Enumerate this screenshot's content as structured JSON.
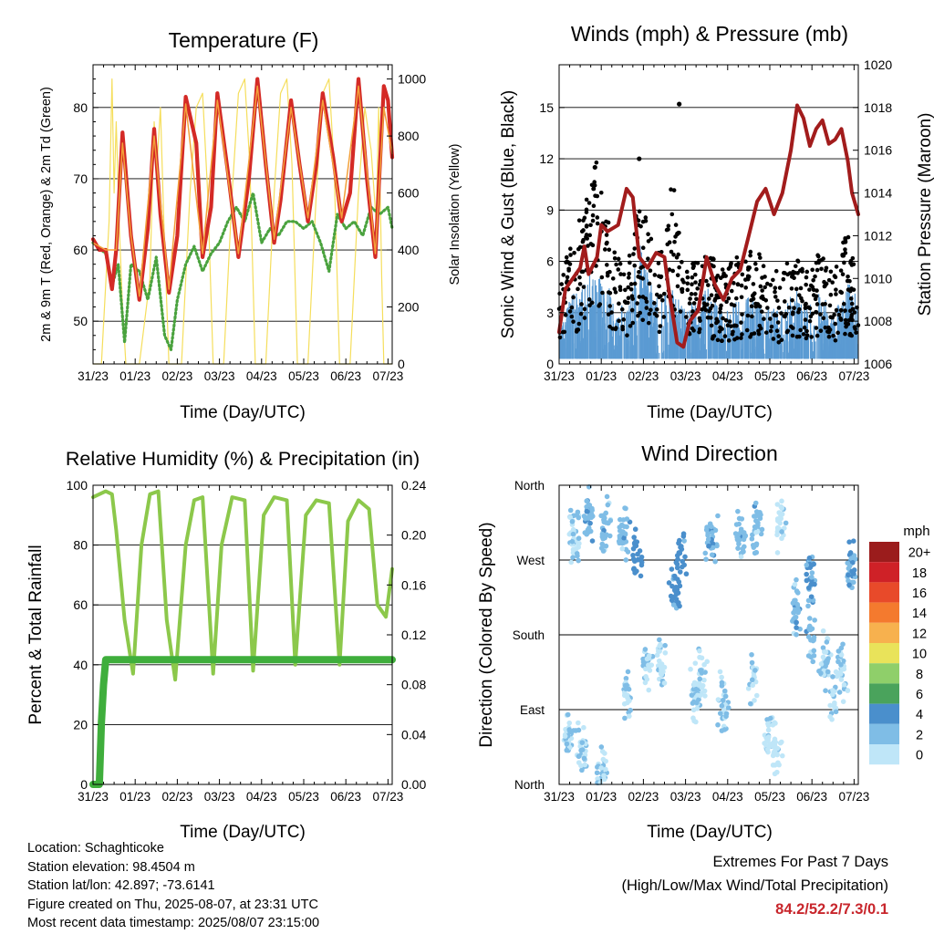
{
  "days": [
    "31/23",
    "01/23",
    "02/23",
    "03/23",
    "04/23",
    "05/23",
    "06/23",
    "07/23"
  ],
  "time_axis_label": "Time (Day/UTC)",
  "colors": {
    "temp_2m": "#d42a26",
    "temp_9m": "#f3a03a",
    "dewpoint": "#4aa23e",
    "solar": "#f5de5c",
    "wind": "#5b9bd3",
    "gust": "#000000",
    "pressure": "#a21c1c",
    "rh": "#8cc84b",
    "precip": "#3fae3c"
  },
  "chart_data": [
    {
      "id": "temperature",
      "type": "line",
      "title": "Temperature (F)",
      "ylabel": "2m & 9m T (Red, Orange) & 2m Td (Green)",
      "y2label": "Solar Insolation (Yellow)",
      "xlabel": "Time (Day/UTC)",
      "ylim": [
        44,
        86
      ],
      "yticks": [
        50,
        60,
        70,
        80
      ],
      "y2lim": [
        0,
        1050
      ],
      "y2ticks": [
        0,
        200,
        400,
        600,
        800,
        1000
      ],
      "series": [
        {
          "role": "temp_2m",
          "x": [
            0,
            0.15,
            0.3,
            0.45,
            0.55,
            0.7,
            0.9,
            1.1,
            1.3,
            1.45,
            1.6,
            1.8,
            2.0,
            2.2,
            2.45,
            2.6,
            2.8,
            2.95,
            3.2,
            3.45,
            3.7,
            3.9,
            4.1,
            4.3,
            4.45,
            4.7,
            4.9,
            5.1,
            5.3,
            5.45,
            5.7,
            5.9,
            6.1,
            6.3,
            6.5,
            6.7,
            6.9,
            7.0,
            7.1
          ],
          "values": [
            61.5,
            60,
            60,
            54.5,
            60,
            76.5,
            62,
            53,
            63,
            77,
            65,
            54,
            62,
            81.5,
            75,
            59,
            66,
            82,
            71,
            59,
            70,
            84,
            72,
            61,
            67,
            81,
            72,
            64,
            72,
            82,
            73,
            64,
            68,
            84,
            70,
            59,
            83,
            81,
            73
          ]
        },
        {
          "role": "temp_9m",
          "x": [
            0,
            0.3,
            0.55,
            0.7,
            0.9,
            1.1,
            1.45,
            1.8,
            2.2,
            2.6,
            2.95,
            3.45,
            3.9,
            4.3,
            4.7,
            5.1,
            5.45,
            5.9,
            6.3,
            6.7,
            6.9,
            7.1
          ],
          "values": [
            61,
            60,
            60,
            75,
            62,
            53.5,
            76,
            54.5,
            80.5,
            59.5,
            81,
            59.5,
            83,
            61.5,
            80,
            64.5,
            81,
            64.5,
            83,
            59.5,
            80,
            73.5
          ]
        },
        {
          "role": "dewpoint",
          "x": [
            0,
            0.3,
            0.45,
            0.6,
            0.75,
            0.9,
            1.1,
            1.3,
            1.5,
            1.7,
            1.85,
            2.0,
            2.2,
            2.4,
            2.6,
            2.8,
            3.0,
            3.2,
            3.4,
            3.6,
            3.8,
            4.0,
            4.2,
            4.4,
            4.6,
            4.8,
            5.0,
            5.2,
            5.4,
            5.6,
            5.8,
            6.0,
            6.2,
            6.4,
            6.6,
            6.8,
            7.0,
            7.1
          ],
          "values": [
            61,
            59.5,
            55,
            58,
            47,
            58,
            57,
            53,
            59,
            48,
            46,
            53,
            58,
            60.5,
            57,
            59.5,
            61,
            64,
            66,
            64,
            68,
            61,
            63,
            62,
            64,
            64,
            63,
            64,
            61,
            57,
            65,
            63,
            64,
            62,
            66,
            65,
            66,
            63
          ]
        },
        {
          "role": "solar",
          "x": [
            0,
            0.2,
            0.38,
            0.45,
            0.5,
            0.55,
            0.62,
            0.7,
            0.78,
            0.88,
            1.1,
            1.35,
            1.45,
            1.52,
            1.6,
            1.68,
            1.8,
            2.1,
            2.3,
            2.45,
            2.6,
            2.72,
            2.85,
            3.1,
            3.3,
            3.45,
            3.6,
            3.72,
            3.85,
            4.1,
            4.3,
            4.45,
            4.6,
            4.72,
            4.85,
            5.1,
            5.3,
            5.45,
            5.6,
            5.72,
            5.85,
            6.1,
            6.3,
            6.45,
            6.6,
            6.72,
            6.78,
            6.85,
            6.9,
            7.1
          ],
          "values": [
            0,
            0,
            500,
            1000,
            600,
            850,
            500,
            200,
            0,
            0,
            0,
            300,
            850,
            700,
            900,
            500,
            0,
            0,
            600,
            900,
            950,
            600,
            0,
            0,
            600,
            950,
            1000,
            700,
            0,
            0,
            600,
            950,
            1000,
            700,
            0,
            0,
            600,
            950,
            1000,
            700,
            0,
            0,
            600,
            900,
            750,
            500,
            900,
            300,
            0,
            0
          ]
        }
      ]
    },
    {
      "id": "winds",
      "type": "scatter",
      "title": "Winds (mph) & Pressure (mb)",
      "ylabel": "Sonic Wind & Gust (Blue, Black)",
      "y2label": "Station Pressure (Maroon)",
      "xlabel": "Time (Day/UTC)",
      "ylim": [
        0,
        17.5
      ],
      "yticks": [
        0,
        3,
        6,
        9,
        12,
        15
      ],
      "y2lim": [
        1006,
        1020
      ],
      "y2ticks": [
        1006,
        1008,
        1010,
        1012,
        1014,
        1016,
        1018,
        1020
      ],
      "wind_envelope": {
        "x": [
          0,
          0.5,
          0.9,
          1.3,
          1.6,
          1.9,
          2.3,
          2.7,
          3.0,
          3.5,
          3.9,
          4.3,
          4.7,
          5.0,
          5.3,
          5.6,
          5.9,
          6.2,
          6.5,
          6.8,
          7.1
        ],
        "values": [
          2.5,
          3.5,
          4.5,
          3,
          2.5,
          5.5,
          3,
          3.5,
          2.5,
          3.5,
          2.5,
          3,
          3,
          2.5,
          2.5,
          3.5,
          2.5,
          3.5,
          2,
          4,
          3
        ]
      },
      "gust_envelope": {
        "x": [
          0,
          0.5,
          0.9,
          1.3,
          1.6,
          1.9,
          2.3,
          2.7,
          3.0,
          3.5,
          3.9,
          4.3,
          4.7,
          5.0,
          5.3,
          5.6,
          5.9,
          6.2,
          6.5,
          6.8,
          7.1
        ],
        "values": [
          5,
          8,
          11,
          6,
          5,
          9,
          6,
          10,
          5,
          6,
          5,
          6,
          6,
          5,
          5,
          6,
          5,
          6,
          5,
          7,
          6
        ]
      },
      "max_gust_points": [
        {
          "x": 2.85,
          "y": 15.2
        },
        {
          "x": 1.9,
          "y": 12
        },
        {
          "x": 0.85,
          "y": 11.5
        }
      ],
      "pressure": {
        "x": [
          0,
          0.15,
          0.5,
          0.6,
          0.7,
          0.9,
          1.0,
          1.15,
          1.4,
          1.6,
          1.75,
          1.9,
          2.1,
          2.3,
          2.5,
          2.6,
          2.8,
          2.95,
          3.1,
          3.3,
          3.5,
          3.7,
          3.9,
          4.1,
          4.3,
          4.5,
          4.7,
          4.9,
          5.1,
          5.3,
          5.5,
          5.65,
          5.8,
          5.95,
          6.1,
          6.25,
          6.4,
          6.55,
          6.7,
          6.85,
          6.95,
          7.1
        ],
        "values": [
          1007.5,
          1009.5,
          1010.5,
          1011.5,
          1010.2,
          1011,
          1012.5,
          1012.2,
          1012.5,
          1014.2,
          1013.8,
          1011,
          1010.5,
          1011.2,
          1011,
          1009.5,
          1007,
          1006.8,
          1008,
          1008.5,
          1011,
          1009.7,
          1009,
          1010,
          1010.4,
          1012,
          1013.6,
          1014.2,
          1013,
          1014,
          1016,
          1018.1,
          1017.5,
          1016.2,
          1017,
          1017.4,
          1016.3,
          1016.5,
          1017,
          1015.5,
          1014,
          1013
        ]
      }
    },
    {
      "id": "humidity",
      "type": "line",
      "title": "Relative Humidity (%) & Precipitation (in)",
      "ylabel": "Percent & Total Rainfall",
      "xlabel": "Time (Day/UTC)",
      "ylim": [
        0,
        100
      ],
      "yticks": [
        0,
        20,
        40,
        60,
        80,
        100
      ],
      "y2lim": [
        0,
        0.24
      ],
      "y2ticks": [
        "0.00",
        "0.04",
        "0.08",
        "0.12",
        "0.16",
        "0.20",
        "0.24"
      ],
      "series": [
        {
          "role": "rh",
          "x": [
            0,
            0.3,
            0.45,
            0.55,
            0.75,
            0.95,
            1.15,
            1.35,
            1.55,
            1.75,
            1.95,
            2.2,
            2.4,
            2.6,
            2.85,
            3.05,
            3.3,
            3.6,
            3.8,
            4.05,
            4.3,
            4.6,
            4.8,
            5.05,
            5.3,
            5.6,
            5.85,
            6.05,
            6.3,
            6.55,
            6.75,
            6.95,
            7.1
          ],
          "values": [
            96,
            98,
            97,
            85,
            55,
            37,
            80,
            97,
            98,
            55,
            35,
            80,
            95,
            96,
            37,
            80,
            96,
            95,
            38,
            90,
            96,
            95,
            40,
            90,
            95,
            94,
            40,
            88,
            95,
            92,
            60,
            56,
            72
          ]
        },
        {
          "role": "precip",
          "name": "Total Rainfall",
          "x": [
            0,
            0.15,
            0.2,
            0.25,
            0.3,
            7.1
          ],
          "values": [
            0,
            0,
            0.05,
            0.08,
            0.1,
            0.1
          ]
        }
      ]
    },
    {
      "id": "direction",
      "type": "scatter",
      "title": "Wind Direction",
      "ylabel": "Direction (Colored By Speed)",
      "xlabel": "Time (Day/UTC)",
      "ylim": [
        0,
        360
      ],
      "ycategories": [
        {
          "label": "North",
          "value": 0
        },
        {
          "label": "East",
          "value": 90
        },
        {
          "label": "South",
          "value": 180
        },
        {
          "label": "West",
          "value": 270
        },
        {
          "label": "North",
          "value": 360
        }
      ],
      "colorbar": {
        "unit": "mph",
        "labels": [
          "0",
          "2",
          "4",
          "6",
          "8",
          "10",
          "12",
          "14",
          "16",
          "18",
          "20+"
        ],
        "colors": [
          "#bfe6f8",
          "#7fbde6",
          "#4a8fcc",
          "#4aa35c",
          "#8fcf6a",
          "#e9e35a",
          "#f7b14e",
          "#f47a2e",
          "#e84a2a",
          "#cf2127",
          "#9b1c1c"
        ]
      },
      "clusters": [
        {
          "x": 0.35,
          "y": 300,
          "n": 40,
          "s": 2
        },
        {
          "x": 0.7,
          "y": 320,
          "n": 35,
          "s": 3.5
        },
        {
          "x": 1.1,
          "y": 310,
          "n": 30,
          "s": 3
        },
        {
          "x": 1.55,
          "y": 300,
          "n": 30,
          "s": 3
        },
        {
          "x": 1.85,
          "y": 275,
          "n": 25,
          "s": 5
        },
        {
          "x": 2.4,
          "y": 150,
          "n": 30,
          "s": 1.5
        },
        {
          "x": 2.75,
          "y": 235,
          "n": 30,
          "s": 4.5
        },
        {
          "x": 2.9,
          "y": 275,
          "n": 20,
          "s": 5
        },
        {
          "x": 3.25,
          "y": 110,
          "n": 35,
          "s": 2
        },
        {
          "x": 3.6,
          "y": 290,
          "n": 35,
          "s": 3.5
        },
        {
          "x": 3.9,
          "y": 100,
          "n": 30,
          "s": 2
        },
        {
          "x": 4.3,
          "y": 300,
          "n": 30,
          "s": 3
        },
        {
          "x": 4.7,
          "y": 310,
          "n": 30,
          "s": 3
        },
        {
          "x": 5.0,
          "y": 60,
          "n": 30,
          "s": 1.5
        },
        {
          "x": 5.25,
          "y": 320,
          "n": 25,
          "s": 1.5
        },
        {
          "x": 5.6,
          "y": 210,
          "n": 35,
          "s": 3
        },
        {
          "x": 5.95,
          "y": 250,
          "n": 35,
          "s": 4
        },
        {
          "x": 6.3,
          "y": 150,
          "n": 35,
          "s": 2
        },
        {
          "x": 6.7,
          "y": 140,
          "n": 35,
          "s": 2
        },
        {
          "x": 6.95,
          "y": 260,
          "n": 30,
          "s": 4
        },
        {
          "x": 0.2,
          "y": 60,
          "n": 30,
          "s": 2
        },
        {
          "x": 0.55,
          "y": 40,
          "n": 30,
          "s": 2
        },
        {
          "x": 1.0,
          "y": 20,
          "n": 25,
          "s": 2
        },
        {
          "x": 1.6,
          "y": 110,
          "n": 25,
          "s": 2
        },
        {
          "x": 2.1,
          "y": 140,
          "n": 25,
          "s": 2
        },
        {
          "x": 3.4,
          "y": 140,
          "n": 20,
          "s": 2
        },
        {
          "x": 4.6,
          "y": 120,
          "n": 20,
          "s": 2
        },
        {
          "x": 5.15,
          "y": 40,
          "n": 25,
          "s": 1
        },
        {
          "x": 6.0,
          "y": 180,
          "n": 20,
          "s": 3
        },
        {
          "x": 6.5,
          "y": 100,
          "n": 20,
          "s": 2
        }
      ]
    }
  ],
  "station_info": [
    "Location: Schaghticoke",
    "Station elevation: 98.4504 m",
    "Station lat/lon: 42.897; -73.6141",
    "Figure created on Thu, 2025-08-07, at 23:31 UTC",
    "Most recent data timestamp: 2025/08/07 23:15:00"
  ],
  "extremes": {
    "title": "Extremes For Past 7 Days",
    "subtitle": "(High/Low/Max Wind/Total Precipitation)",
    "values": "84.2/52.2/7.3/0.1"
  }
}
